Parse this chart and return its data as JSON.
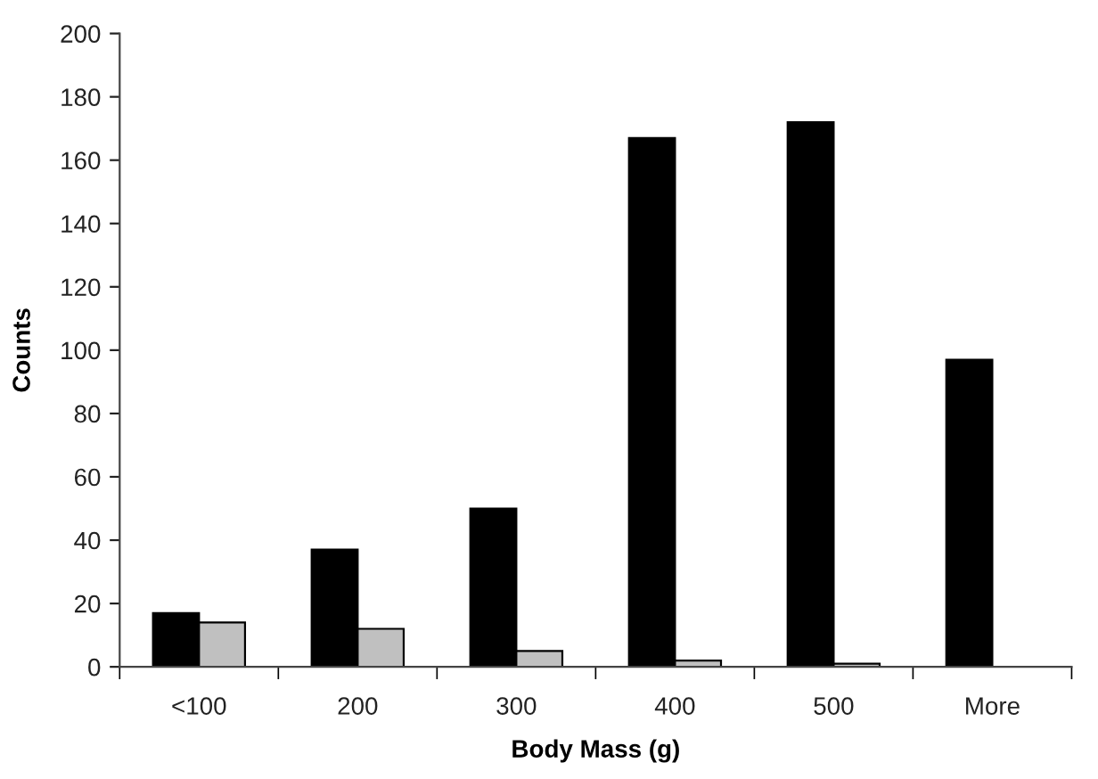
{
  "chart_data": {
    "type": "bar",
    "xlabel": "Body Mass (g)",
    "ylabel": "Counts",
    "categories": [
      "<100",
      "200",
      "300",
      "400",
      "500",
      "More"
    ],
    "series": [
      {
        "color": "#000000",
        "values": [
          17,
          37,
          50,
          167,
          172,
          97
        ]
      },
      {
        "color": "#c0c0c0",
        "values": [
          14,
          12,
          5,
          2,
          1,
          null
        ]
      }
    ],
    "ylim": [
      0,
      200
    ],
    "yticks": [
      0,
      20,
      40,
      60,
      80,
      100,
      120,
      140,
      160,
      180,
      200
    ],
    "grid": false
  }
}
